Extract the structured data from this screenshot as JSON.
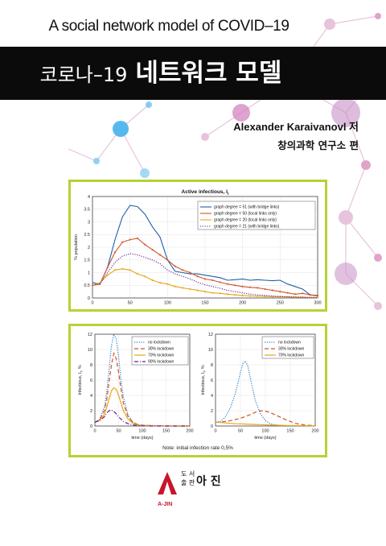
{
  "cover": {
    "english_title": "A social network model of COVID–19",
    "korean_title_prefix": "코로나–19",
    "korean_title_main": "네트워크 모델",
    "author": "Alexander Karaivanovl 저",
    "editor": "창의과학 연구소 편",
    "note": "Note: initial infection rate 0,5%"
  },
  "publisher": {
    "small_top": "도 서",
    "small_bottom": "출 판",
    "name": "아 진",
    "english": "A-JIN",
    "brand_color": "#c7162b"
  },
  "colors": {
    "frame": "#b6d234",
    "band": "#0b0b0b",
    "molecule_pink": "#e2a3cb",
    "molecule_blue": "#57b8ee",
    "molecule_purple": "#c690c6"
  },
  "chart_data": [
    {
      "type": "line",
      "title": "Active infectious, I",
      "title_subscript": "t",
      "xlabel": "",
      "ylabel": "% population",
      "xlim": [
        0,
        300
      ],
      "ylim": [
        0,
        4
      ],
      "xticks": [
        "0",
        "50",
        "100",
        "150",
        "200",
        "250",
        "300"
      ],
      "yticks": [
        "0",
        "0.5",
        "1",
        "1.5",
        "2",
        "2.5",
        "3",
        "3.5",
        "4"
      ],
      "grid": true,
      "legend_position": "top-right",
      "series": [
        {
          "name": "graph degree = 51 (with bridge links)",
          "color": "#1f5fa8",
          "style": "solid",
          "x": [
            0,
            10,
            20,
            30,
            40,
            50,
            60,
            70,
            80,
            90,
            100,
            110,
            120,
            130,
            140,
            150,
            160,
            170,
            180,
            190,
            200,
            210,
            220,
            230,
            240,
            250,
            260,
            270,
            280,
            290,
            300
          ],
          "y": [
            0.6,
            0.55,
            1.2,
            2.3,
            3.2,
            3.65,
            3.6,
            3.3,
            2.8,
            2.4,
            1.5,
            1.05,
            1.0,
            0.95,
            0.95,
            0.9,
            0.85,
            0.8,
            0.7,
            0.72,
            0.75,
            0.7,
            0.72,
            0.7,
            0.68,
            0.7,
            0.55,
            0.45,
            0.35,
            0.12,
            0.08
          ]
        },
        {
          "name": "graph degree = 50 (local links only)",
          "color": "#d2532c",
          "style": "solid-marker",
          "x": [
            0,
            10,
            20,
            30,
            40,
            50,
            60,
            70,
            80,
            90,
            100,
            110,
            120,
            130,
            140,
            150,
            160,
            170,
            180,
            190,
            200,
            210,
            220,
            230,
            240,
            250,
            260,
            270,
            280,
            290,
            300
          ],
          "y": [
            0.5,
            0.55,
            1.2,
            1.8,
            2.2,
            2.3,
            2.35,
            2.1,
            1.9,
            1.7,
            1.5,
            1.25,
            1.1,
            1.0,
            0.85,
            0.75,
            0.7,
            0.62,
            0.55,
            0.5,
            0.45,
            0.42,
            0.4,
            0.35,
            0.3,
            0.25,
            0.2,
            0.15,
            0.18,
            0.12,
            0.1
          ]
        },
        {
          "name": "graph degree = 20 (local links only)",
          "color": "#e6a519",
          "style": "solid-marker",
          "x": [
            0,
            10,
            20,
            30,
            40,
            50,
            60,
            70,
            80,
            90,
            100,
            110,
            120,
            130,
            140,
            150,
            160,
            170,
            180,
            190,
            200,
            210,
            220,
            230,
            240,
            250,
            260,
            270,
            280,
            290,
            300
          ],
          "y": [
            0.5,
            0.6,
            0.9,
            1.1,
            1.15,
            1.1,
            0.95,
            0.85,
            0.7,
            0.6,
            0.55,
            0.45,
            0.4,
            0.35,
            0.3,
            0.25,
            0.2,
            0.18,
            0.15,
            0.12,
            0.1,
            0.08,
            0.07,
            0.06,
            0.05,
            0.05,
            0.04,
            0.03,
            0.03,
            0.02,
            0.02
          ]
        },
        {
          "name": "graph degree = 21 (with bridge links)",
          "color": "#6a1f8a",
          "style": "dotted",
          "x": [
            0,
            10,
            20,
            30,
            40,
            50,
            60,
            70,
            80,
            90,
            100,
            110,
            120,
            130,
            140,
            150,
            160,
            170,
            180,
            190,
            200,
            210,
            220,
            230,
            240,
            250,
            260,
            270,
            280,
            290,
            300
          ],
          "y": [
            0.5,
            0.55,
            1.0,
            1.4,
            1.65,
            1.75,
            1.7,
            1.6,
            1.5,
            1.35,
            1.1,
            0.95,
            0.85,
            0.75,
            0.62,
            0.52,
            0.45,
            0.38,
            0.3,
            0.25,
            0.2,
            0.15,
            0.12,
            0.1,
            0.08,
            0.06,
            0.05,
            0.04,
            0.03,
            0.02,
            0.02
          ]
        }
      ]
    },
    {
      "type": "line",
      "title": "",
      "xlabel": "time (days)",
      "ylabel": "Infectious, I",
      "ylabel_subscript": "t",
      "ylabel_suffix": ", %",
      "xlim": [
        0,
        200
      ],
      "ylim": [
        0,
        12
      ],
      "xticks": [
        "0",
        "50",
        "100",
        "150",
        "200"
      ],
      "yticks": [
        "0",
        "2",
        "4",
        "6",
        "8",
        "10",
        "12"
      ],
      "grid": true,
      "legend_position": "top-right",
      "series": [
        {
          "name": "no lockdown",
          "color": "#2e7fc0",
          "style": "dotted",
          "x": [
            0,
            10,
            20,
            25,
            30,
            35,
            40,
            45,
            50,
            55,
            60,
            70,
            80,
            90,
            100,
            120,
            150,
            200
          ],
          "y": [
            0.5,
            0.9,
            2.5,
            4.5,
            7.5,
            10.5,
            12.0,
            11.4,
            9.0,
            6.0,
            3.8,
            1.4,
            0.5,
            0.2,
            0.1,
            0.05,
            0.0,
            0.0
          ]
        },
        {
          "name": "30% lockdown",
          "color": "#d2532c",
          "style": "dashed",
          "x": [
            0,
            10,
            20,
            25,
            30,
            35,
            40,
            45,
            50,
            55,
            60,
            70,
            80,
            90,
            100,
            120,
            150,
            200
          ],
          "y": [
            0.5,
            0.8,
            2.0,
            3.5,
            5.8,
            8.0,
            9.5,
            8.8,
            7.0,
            4.8,
            3.0,
            1.2,
            0.5,
            0.2,
            0.1,
            0.05,
            0.0,
            0.0
          ]
        },
        {
          "name": "70% lockdown",
          "color": "#e6a519",
          "style": "solid",
          "x": [
            0,
            10,
            20,
            25,
            30,
            35,
            40,
            45,
            50,
            55,
            60,
            70,
            80,
            90,
            100,
            120,
            150,
            200
          ],
          "y": [
            0.5,
            0.7,
            1.5,
            2.5,
            3.6,
            4.6,
            5.0,
            4.8,
            4.0,
            3.0,
            2.0,
            0.9,
            0.35,
            0.15,
            0.05,
            0.02,
            0.0,
            0.0
          ]
        },
        {
          "name": "90% lockdown",
          "color": "#6a1f8a",
          "style": "dashdot",
          "x": [
            0,
            10,
            20,
            25,
            30,
            35,
            40,
            45,
            50,
            55,
            60,
            70,
            80,
            90,
            100,
            120,
            150,
            200
          ],
          "y": [
            0.5,
            0.7,
            1.2,
            1.7,
            2.0,
            2.1,
            1.9,
            1.6,
            1.2,
            0.9,
            0.6,
            0.3,
            0.15,
            0.05,
            0.02,
            0.0,
            0.0,
            0.0
          ]
        }
      ]
    },
    {
      "type": "line",
      "title": "",
      "xlabel": "time (days)",
      "ylabel": "Infectious, I",
      "ylabel_subscript": "t",
      "ylabel_suffix": ", %",
      "xlim": [
        0,
        200
      ],
      "ylim": [
        0,
        12
      ],
      "xticks": [
        "0",
        "50",
        "100",
        "150",
        "200"
      ],
      "yticks": [
        "0",
        "2",
        "4",
        "6",
        "8",
        "10",
        "12"
      ],
      "grid": true,
      "legend_position": "top-right",
      "series": [
        {
          "name": "no lockdown",
          "color": "#2e7fc0",
          "style": "dotted",
          "x": [
            0,
            10,
            20,
            30,
            40,
            50,
            55,
            60,
            65,
            70,
            80,
            90,
            100,
            110,
            120,
            150,
            200
          ],
          "y": [
            0.5,
            0.6,
            1.2,
            2.4,
            4.3,
            7.0,
            8.2,
            8.5,
            7.8,
            6.2,
            3.3,
            1.6,
            0.7,
            0.3,
            0.15,
            0.0,
            0.0
          ]
        },
        {
          "name": "30% lockdown",
          "color": "#d2532c",
          "style": "dashed",
          "x": [
            0,
            10,
            20,
            30,
            40,
            50,
            60,
            70,
            80,
            90,
            100,
            110,
            120,
            130,
            140,
            150,
            160,
            180,
            200
          ],
          "y": [
            0.5,
            0.5,
            0.6,
            0.7,
            0.85,
            1.0,
            1.25,
            1.5,
            1.8,
            2.0,
            1.95,
            1.75,
            1.45,
            1.15,
            0.85,
            0.6,
            0.35,
            0.12,
            0.05
          ]
        },
        {
          "name": "70% lockdown",
          "color": "#e6a519",
          "style": "solid",
          "x": [
            0,
            10,
            20,
            30,
            40,
            50,
            60,
            70,
            80,
            90,
            100,
            120,
            150,
            200
          ],
          "y": [
            0.5,
            0.45,
            0.4,
            0.35,
            0.3,
            0.28,
            0.25,
            0.22,
            0.2,
            0.18,
            0.15,
            0.1,
            0.05,
            0.02
          ]
        }
      ]
    }
  ]
}
